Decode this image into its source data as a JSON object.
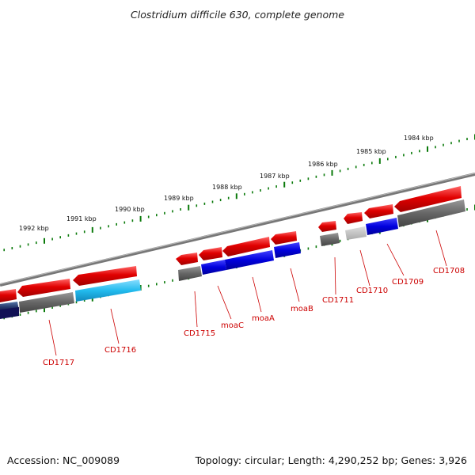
{
  "title": "Clostridium difficile 630, complete genome",
  "footer": {
    "accession": "Accession: NC_009089",
    "summary": "Topology: circular; Length: 4,290,252 bp; Genes: 3,926"
  },
  "colors": {
    "forward_cds": "#e00000",
    "reverse_cds_blue": "#0000dd",
    "reverse_cds_cyan": "#22bbee",
    "reverse_cds_navy": "#101060",
    "gray_feature": "#666666",
    "light_gray_feature": "#bbbbbb",
    "backbone": "#888888",
    "ticks": "#0a7a0a",
    "labels": "#cc0000"
  },
  "kbp_markers": [
    {
      "label": "1984 kbp"
    },
    {
      "label": "1985 kbp"
    },
    {
      "label": "1986 kbp"
    },
    {
      "label": "1987 kbp"
    },
    {
      "label": "1988 kbp"
    },
    {
      "label": "1989 kbp"
    },
    {
      "label": "1990 kbp"
    },
    {
      "label": "1991 kbp"
    },
    {
      "label": "1992 kbp"
    }
  ],
  "gene_labels": [
    {
      "name": "CD1708"
    },
    {
      "name": "CD1709"
    },
    {
      "name": "CD1710"
    },
    {
      "name": "CD1711"
    },
    {
      "name": "moaB"
    },
    {
      "name": "moaA"
    },
    {
      "name": "moaC"
    },
    {
      "name": "CD1715"
    },
    {
      "name": "CD1716"
    },
    {
      "name": "CD1717"
    }
  ]
}
